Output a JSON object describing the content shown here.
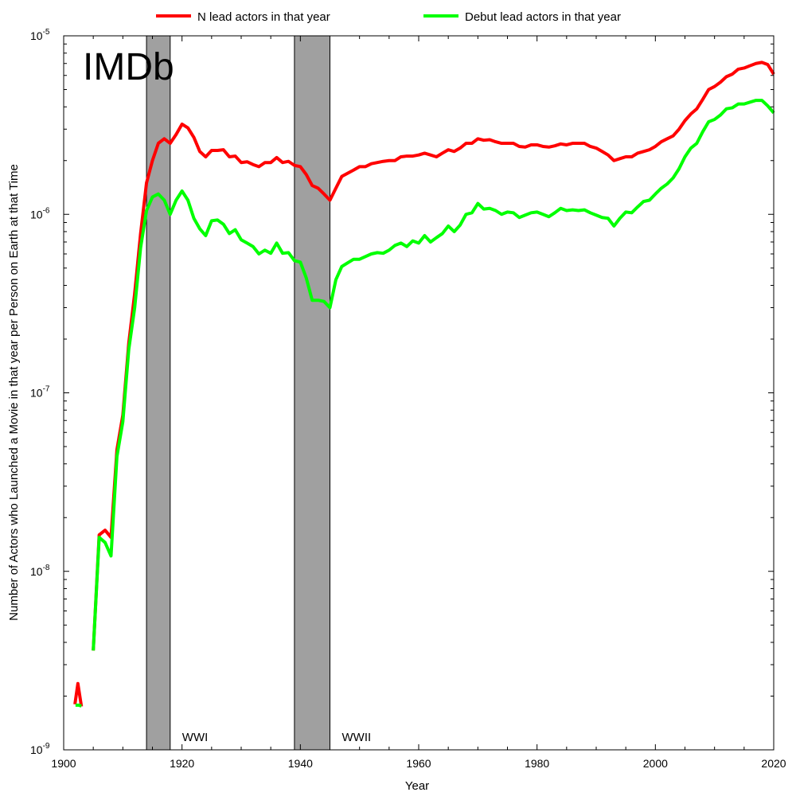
{
  "chart_data": {
    "type": "line",
    "title": "",
    "xlabel": "Year",
    "ylabel": "Number of Actors who Launched a Movie in that year per Person on Earth at that Time",
    "watermark": "IMDb",
    "xlim": [
      1900,
      2020
    ],
    "ylim": [
      1e-09,
      1e-05
    ],
    "yscale": "log",
    "grid": false,
    "legend_position": "top",
    "x_ticks": [
      1900,
      1920,
      1940,
      1960,
      1980,
      2000,
      2020
    ],
    "x_tick_labels": [
      "1900",
      "1920",
      "1940",
      "1960",
      "1980",
      "2000",
      "2020"
    ],
    "y_ticks": [
      {
        "value": 1e-09,
        "base": "10",
        "exp": "-9"
      },
      {
        "value": 1e-08,
        "base": "10",
        "exp": "-8"
      },
      {
        "value": 1e-07,
        "base": "10",
        "exp": "-7"
      },
      {
        "value": 1e-06,
        "base": "10",
        "exp": "-6"
      },
      {
        "value": 1e-05,
        "base": "10",
        "exp": "-5"
      }
    ],
    "bands": [
      {
        "label": "WWI",
        "start": 1914,
        "end": 1918,
        "color": "#a0a0a0"
      },
      {
        "label": "WWII",
        "start": 1939,
        "end": 1945,
        "color": "#a0a0a0"
      }
    ],
    "series": [
      {
        "name": "N lead actors in that year",
        "color": "#ff0000",
        "segments": [
          [
            [
              1901.9,
              1.8e-09
            ],
            [
              1902.4,
              2.35e-09
            ],
            [
              1903.0,
              1.75e-09
            ]
          ],
          [
            [
              1905,
              3.6e-09
            ],
            [
              1906,
              1.6e-08
            ],
            [
              1907,
              1.7e-08
            ],
            [
              1908,
              1.55e-08
            ],
            [
              1909,
              4.8e-08
            ],
            [
              1910,
              7.5e-08
            ],
            [
              1911,
              1.9e-07
            ],
            [
              1912,
              3.6e-07
            ],
            [
              1913,
              7.8e-07
            ],
            [
              1914,
              1.5e-06
            ],
            [
              1915,
              2e-06
            ],
            [
              1916,
              2.5e-06
            ],
            [
              1917,
              2.65e-06
            ],
            [
              1918,
              2.5e-06
            ],
            [
              1919,
              2.8e-06
            ],
            [
              1920,
              3.2e-06
            ],
            [
              1921,
              3.05e-06
            ],
            [
              1922,
              2.7e-06
            ],
            [
              1923,
              2.25e-06
            ],
            [
              1924,
              2.1e-06
            ],
            [
              1925,
              2.28e-06
            ],
            [
              1926,
              2.28e-06
            ],
            [
              1927,
              2.3e-06
            ],
            [
              1928,
              2.1e-06
            ],
            [
              1929,
              2.12e-06
            ],
            [
              1930,
              1.95e-06
            ],
            [
              1931,
              1.97e-06
            ],
            [
              1932,
              1.9e-06
            ],
            [
              1933,
              1.85e-06
            ],
            [
              1934,
              1.95e-06
            ],
            [
              1935,
              1.95e-06
            ],
            [
              1936,
              2.08e-06
            ],
            [
              1937,
              1.95e-06
            ],
            [
              1938,
              1.98e-06
            ],
            [
              1939,
              1.88e-06
            ],
            [
              1940,
              1.85e-06
            ],
            [
              1941,
              1.67e-06
            ],
            [
              1942,
              1.45e-06
            ],
            [
              1943,
              1.4e-06
            ],
            [
              1944,
              1.3e-06
            ],
            [
              1945,
              1.2e-06
            ],
            [
              1946,
              1.4e-06
            ],
            [
              1947,
              1.63e-06
            ],
            [
              1948,
              1.7e-06
            ],
            [
              1949,
              1.77e-06
            ],
            [
              1950,
              1.85e-06
            ],
            [
              1951,
              1.85e-06
            ],
            [
              1952,
              1.92e-06
            ],
            [
              1953,
              1.95e-06
            ],
            [
              1954,
              1.98e-06
            ],
            [
              1955,
              2e-06
            ],
            [
              1956,
              2e-06
            ],
            [
              1957,
              2.1e-06
            ],
            [
              1958,
              2.12e-06
            ],
            [
              1959,
              2.12e-06
            ],
            [
              1960,
              2.15e-06
            ],
            [
              1961,
              2.2e-06
            ],
            [
              1962,
              2.15e-06
            ],
            [
              1963,
              2.1e-06
            ],
            [
              1964,
              2.2e-06
            ],
            [
              1965,
              2.3e-06
            ],
            [
              1966,
              2.25e-06
            ],
            [
              1967,
              2.35e-06
            ],
            [
              1968,
              2.5e-06
            ],
            [
              1969,
              2.5e-06
            ],
            [
              1970,
              2.65e-06
            ],
            [
              1971,
              2.6e-06
            ],
            [
              1972,
              2.62e-06
            ],
            [
              1973,
              2.55e-06
            ],
            [
              1974,
              2.5e-06
            ],
            [
              1975,
              2.5e-06
            ],
            [
              1976,
              2.5e-06
            ],
            [
              1977,
              2.4e-06
            ],
            [
              1978,
              2.38e-06
            ],
            [
              1979,
              2.45e-06
            ],
            [
              1980,
              2.45e-06
            ],
            [
              1981,
              2.4e-06
            ],
            [
              1982,
              2.38e-06
            ],
            [
              1983,
              2.42e-06
            ],
            [
              1984,
              2.48e-06
            ],
            [
              1985,
              2.45e-06
            ],
            [
              1986,
              2.5e-06
            ],
            [
              1987,
              2.5e-06
            ],
            [
              1988,
              2.5e-06
            ],
            [
              1989,
              2.4e-06
            ],
            [
              1990,
              2.35e-06
            ],
            [
              1991,
              2.25e-06
            ],
            [
              1992,
              2.15e-06
            ],
            [
              1993,
              2e-06
            ],
            [
              1994,
              2.05e-06
            ],
            [
              1995,
              2.1e-06
            ],
            [
              1996,
              2.1e-06
            ],
            [
              1997,
              2.2e-06
            ],
            [
              1998,
              2.25e-06
            ],
            [
              1999,
              2.3e-06
            ],
            [
              2000,
              2.4e-06
            ],
            [
              2001,
              2.55e-06
            ],
            [
              2002,
              2.65e-06
            ],
            [
              2003,
              2.75e-06
            ],
            [
              2004,
              3e-06
            ],
            [
              2005,
              3.35e-06
            ],
            [
              2006,
              3.65e-06
            ],
            [
              2007,
              3.9e-06
            ],
            [
              2008,
              4.4e-06
            ],
            [
              2009,
              5e-06
            ],
            [
              2010,
              5.2e-06
            ],
            [
              2011,
              5.5e-06
            ],
            [
              2012,
              5.9e-06
            ],
            [
              2013,
              6.1e-06
            ],
            [
              2014,
              6.5e-06
            ],
            [
              2015,
              6.6e-06
            ],
            [
              2016,
              6.8e-06
            ],
            [
              2017,
              7e-06
            ],
            [
              2018,
              7.1e-06
            ],
            [
              2019,
              6.9e-06
            ],
            [
              2020,
              6.1e-06
            ]
          ]
        ]
      },
      {
        "name": "Debut lead actors in that year",
        "color": "#00ff00",
        "segments": [
          [
            [
              1902,
              1.78e-09
            ],
            [
              1902.5,
              1.78e-09
            ],
            [
              1903,
              1.76e-09
            ]
          ],
          [
            [
              1905,
              3.6e-09
            ],
            [
              1906,
              1.55e-08
            ],
            [
              1907,
              1.45e-08
            ],
            [
              1908,
              1.22e-08
            ],
            [
              1909,
              4.4e-08
            ],
            [
              1910,
              6.9e-08
            ],
            [
              1911,
              1.75e-07
            ],
            [
              1912,
              3e-07
            ],
            [
              1913,
              6.5e-07
            ],
            [
              1914,
              1.05e-06
            ],
            [
              1915,
              1.25e-06
            ],
            [
              1916,
              1.3e-06
            ],
            [
              1917,
              1.2e-06
            ],
            [
              1918,
              1e-06
            ],
            [
              1919,
              1.2e-06
            ],
            [
              1920,
              1.35e-06
            ],
            [
              1921,
              1.2e-06
            ],
            [
              1922,
              9.5e-07
            ],
            [
              1923,
              8.3e-07
            ],
            [
              1924,
              7.6e-07
            ],
            [
              1925,
              9.2e-07
            ],
            [
              1926,
              9.3e-07
            ],
            [
              1927,
              8.8e-07
            ],
            [
              1928,
              7.8e-07
            ],
            [
              1929,
              8.2e-07
            ],
            [
              1930,
              7.2e-07
            ],
            [
              1931,
              6.9e-07
            ],
            [
              1932,
              6.6e-07
            ],
            [
              1933,
              6e-07
            ],
            [
              1934,
              6.3e-07
            ],
            [
              1935,
              6.05e-07
            ],
            [
              1936,
              6.9e-07
            ],
            [
              1937,
              6.05e-07
            ],
            [
              1938,
              6.1e-07
            ],
            [
              1939,
              5.5e-07
            ],
            [
              1940,
              5.4e-07
            ],
            [
              1941,
              4.4e-07
            ],
            [
              1942,
              3.3e-07
            ],
            [
              1943,
              3.3e-07
            ],
            [
              1944,
              3.25e-07
            ],
            [
              1945,
              3e-07
            ],
            [
              1946,
              4.3e-07
            ],
            [
              1947,
              5.1e-07
            ],
            [
              1948,
              5.35e-07
            ],
            [
              1949,
              5.6e-07
            ],
            [
              1950,
              5.6e-07
            ],
            [
              1951,
              5.8e-07
            ],
            [
              1952,
              6e-07
            ],
            [
              1953,
              6.1e-07
            ],
            [
              1954,
              6.05e-07
            ],
            [
              1955,
              6.3e-07
            ],
            [
              1956,
              6.7e-07
            ],
            [
              1957,
              6.9e-07
            ],
            [
              1958,
              6.6e-07
            ],
            [
              1959,
              7.1e-07
            ],
            [
              1960,
              6.9e-07
            ],
            [
              1961,
              7.6e-07
            ],
            [
              1962,
              7e-07
            ],
            [
              1963,
              7.4e-07
            ],
            [
              1964,
              7.8e-07
            ],
            [
              1965,
              8.6e-07
            ],
            [
              1966,
              8e-07
            ],
            [
              1967,
              8.7e-07
            ],
            [
              1968,
              1e-06
            ],
            [
              1969,
              1.02e-06
            ],
            [
              1970,
              1.15e-06
            ],
            [
              1971,
              1.07e-06
            ],
            [
              1972,
              1.08e-06
            ],
            [
              1973,
              1.05e-06
            ],
            [
              1974,
              1e-06
            ],
            [
              1975,
              1.03e-06
            ],
            [
              1976,
              1.02e-06
            ],
            [
              1977,
              9.6e-07
            ],
            [
              1978,
              9.9e-07
            ],
            [
              1979,
              1.02e-06
            ],
            [
              1980,
              1.03e-06
            ],
            [
              1981,
              1e-06
            ],
            [
              1982,
              9.7e-07
            ],
            [
              1983,
              1.02e-06
            ],
            [
              1984,
              1.08e-06
            ],
            [
              1985,
              1.05e-06
            ],
            [
              1986,
              1.06e-06
            ],
            [
              1987,
              1.05e-06
            ],
            [
              1988,
              1.06e-06
            ],
            [
              1989,
              1.02e-06
            ],
            [
              1990,
              9.9e-07
            ],
            [
              1991,
              9.6e-07
            ],
            [
              1992,
              9.5e-07
            ],
            [
              1993,
              8.6e-07
            ],
            [
              1994,
              9.5e-07
            ],
            [
              1995,
              1.03e-06
            ],
            [
              1996,
              1.02e-06
            ],
            [
              1997,
              1.1e-06
            ],
            [
              1998,
              1.18e-06
            ],
            [
              1999,
              1.2e-06
            ],
            [
              2000,
              1.3e-06
            ],
            [
              2001,
              1.4e-06
            ],
            [
              2002,
              1.48e-06
            ],
            [
              2003,
              1.6e-06
            ],
            [
              2004,
              1.8e-06
            ],
            [
              2005,
              2.1e-06
            ],
            [
              2006,
              2.35e-06
            ],
            [
              2007,
              2.5e-06
            ],
            [
              2008,
              2.9e-06
            ],
            [
              2009,
              3.3e-06
            ],
            [
              2010,
              3.4e-06
            ],
            [
              2011,
              3.6e-06
            ],
            [
              2012,
              3.9e-06
            ],
            [
              2013,
              3.95e-06
            ],
            [
              2014,
              4.15e-06
            ],
            [
              2015,
              4.15e-06
            ],
            [
              2016,
              4.25e-06
            ],
            [
              2017,
              4.35e-06
            ],
            [
              2018,
              4.35e-06
            ],
            [
              2019,
              4.05e-06
            ],
            [
              2020,
              3.7e-06
            ]
          ]
        ]
      }
    ]
  }
}
